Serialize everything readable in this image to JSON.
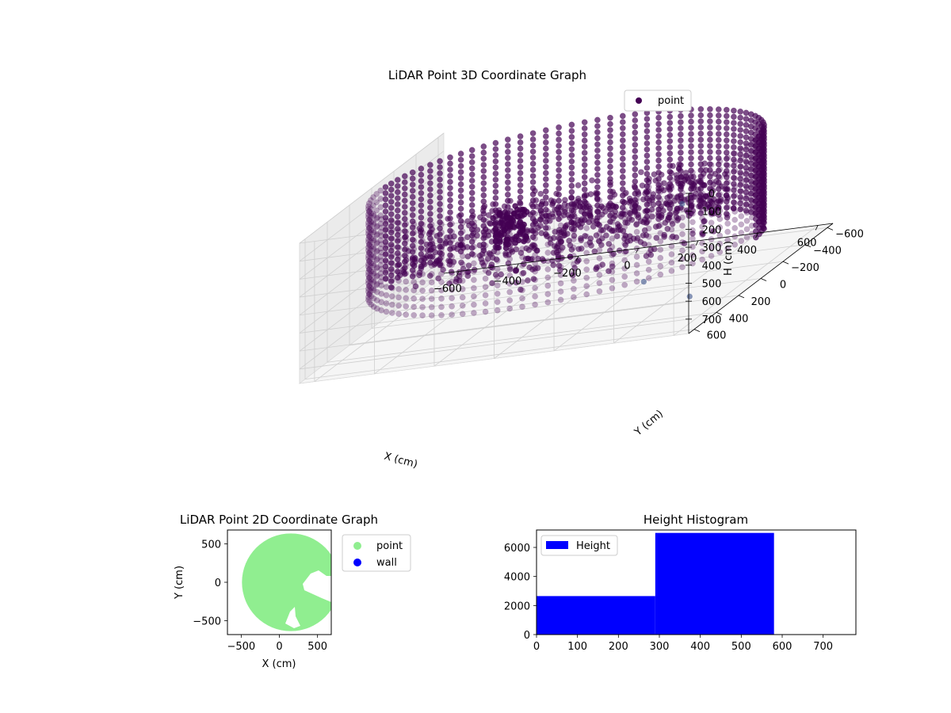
{
  "figure": {
    "background": "#ffffff"
  },
  "chart_data": [
    {
      "type": "scatter",
      "projection": "3d",
      "title": "LiDAR Point 3D Coordinate Graph",
      "xlabel": "X (cm)",
      "ylabel": "Y (cm)",
      "zlabel": "H (cm)",
      "xlim": [
        -650,
        650
      ],
      "ylim": [
        -650,
        650
      ],
      "zlim": [
        780,
        0
      ],
      "xticks": [
        "−600",
        "−400",
        "−200",
        "0",
        "200",
        "400",
        "600"
      ],
      "xtick_values": [
        -600,
        -400,
        -200,
        0,
        200,
        400,
        600
      ],
      "yticks": [
        "−600",
        "−400",
        "−200",
        "0",
        "200",
        "400",
        "600"
      ],
      "ytick_values": [
        -600,
        -400,
        -200,
        0,
        200,
        400,
        600
      ],
      "zticks": [
        "0",
        "100",
        "200",
        "300",
        "400",
        "500",
        "600",
        "700"
      ],
      "ztick_values": [
        0,
        100,
        200,
        300,
        400,
        500,
        600,
        700
      ],
      "z_axis_inverted": true,
      "grid": true,
      "legend_position": "top-right",
      "series": [
        {
          "name": "point",
          "color": "#440154",
          "description_shape": "cylindrical wall ring with scattered interior points",
          "wall_radius_cm": 620,
          "wall_height_range_cm": [
            20,
            560
          ],
          "outliers": [
            {
              "x": 150,
              "y": -640,
              "z": 560
            },
            {
              "x": 620,
              "y": 560,
              "z": 610
            },
            {
              "x": 500,
              "y": 650,
              "z": 460
            }
          ]
        }
      ]
    },
    {
      "type": "scatter",
      "title": "LiDAR Point 2D Coordinate Graph",
      "xlabel": "X (cm)",
      "ylabel": "Y (cm)",
      "xlim": [
        -680,
        680
      ],
      "ylim": [
        -680,
        680
      ],
      "xticks": [
        "−500",
        "0",
        "500"
      ],
      "xtick_values": [
        -500,
        0,
        500
      ],
      "yticks": [
        "500",
        "0",
        "−500"
      ],
      "ytick_values": [
        500,
        0,
        -500
      ],
      "legend_position": "outside-right",
      "series": [
        {
          "name": "point",
          "color": "#90ee90",
          "region": "disc",
          "center": [
            150,
            0
          ],
          "radius": 640
        },
        {
          "name": "wall",
          "color": "#0000ff"
        }
      ]
    },
    {
      "type": "bar",
      "subtype": "histogram",
      "title": "Height Histogram",
      "xlim": [
        0,
        780
      ],
      "ylim": [
        0,
        7200
      ],
      "xticks": [
        "0",
        "100",
        "200",
        "300",
        "400",
        "500",
        "600",
        "700"
      ],
      "xtick_values": [
        0,
        100,
        200,
        300,
        400,
        500,
        600,
        700
      ],
      "yticks": [
        "0",
        "2000",
        "4000",
        "6000"
      ],
      "ytick_values": [
        0,
        2000,
        4000,
        6000
      ],
      "legend_position": "top-left",
      "series": [
        {
          "name": "Height",
          "color": "#0000ff",
          "bins": [
            {
              "start": 0,
              "end": 290,
              "count": 2650
            },
            {
              "start": 290,
              "end": 580,
              "count": 7000
            }
          ]
        }
      ]
    }
  ]
}
